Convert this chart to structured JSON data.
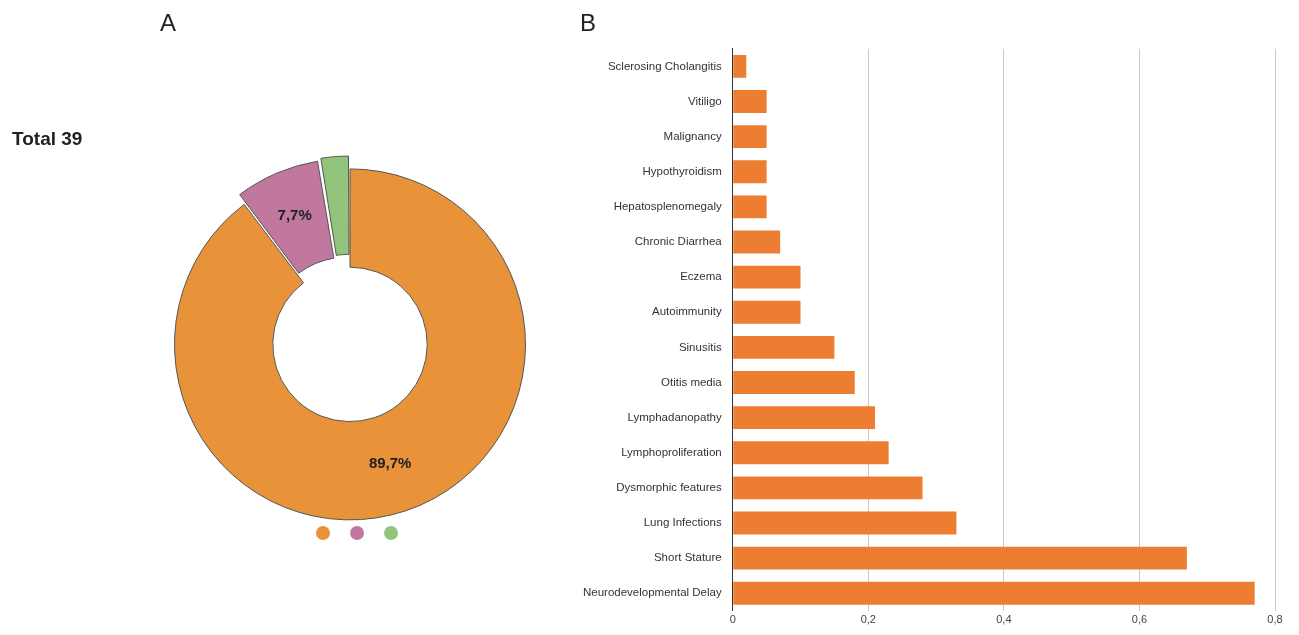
{
  "chart_data": [
    {
      "type": "donut",
      "title": "A",
      "categories": [
        null,
        null,
        null
      ],
      "values": [
        89.7,
        7.7,
        2.6
      ],
      "colors": [
        "#e8923a",
        "#c0789e",
        "#92c47c"
      ],
      "value_labels": [
        "89,7%",
        "7,7%",
        null
      ],
      "annotations": [
        "Total 39"
      ]
    },
    {
      "type": "bar",
      "title": "B",
      "orientation": "horizontal",
      "categories": [
        "Sclerosing Cholangitis",
        "Vitiligo",
        "Malignancy",
        "Hypothyroidism",
        "Hepatosplenomegaly",
        "Chronic Diarrhea",
        "Eczema",
        "Autoimmunity",
        "Sinusitis",
        "Otitis media",
        "Lymphadanopathy",
        "Lymphoproliferation",
        "Dysmorphic features",
        "Lung Infections",
        "Short Stature",
        "Neurodevelopmental Delay"
      ],
      "values": [
        0.02,
        0.05,
        0.05,
        0.05,
        0.05,
        0.07,
        0.1,
        0.1,
        0.15,
        0.18,
        0.21,
        0.23,
        0.28,
        0.33,
        0.67,
        0.77
      ],
      "color": "#ed7d31",
      "xlim": [
        0,
        0.8
      ],
      "xticks": [
        0,
        {
          "value": 0.2,
          "label": "0,2"
        },
        {
          "value": 0.4,
          "label": "0,4"
        },
        {
          "value": 0.6,
          "label": "0,6"
        },
        {
          "value": 0.8,
          "label": "0,8"
        }
      ],
      "grid": "x",
      "legend": false
    }
  ]
}
